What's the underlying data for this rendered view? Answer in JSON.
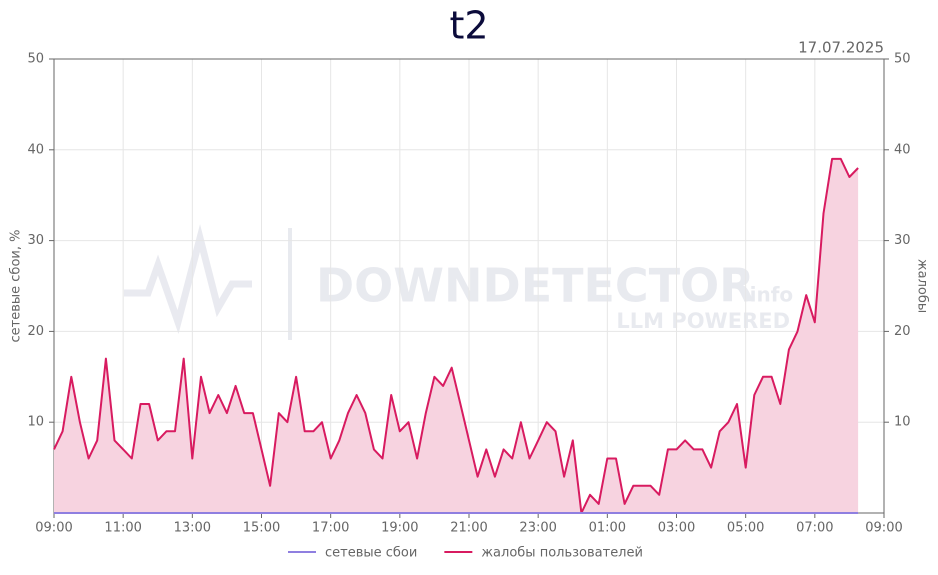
{
  "chart_data": {
    "type": "line",
    "title": "t2",
    "date": "17.07.2025",
    "y_label": "сетевые сбои, %",
    "y2_label": "жалобы",
    "watermark": {
      "brand": "DOWNDETECTOR",
      "suffix": ".info",
      "tagline": "LLM POWERED"
    },
    "x": [
      0,
      0.25,
      0.5,
      0.75,
      1,
      1.25,
      1.5,
      1.75,
      2,
      2.25,
      2.5,
      2.75,
      3,
      3.25,
      3.5,
      3.75,
      4,
      4.25,
      4.5,
      4.75,
      5,
      5.25,
      5.5,
      5.75,
      6,
      6.25,
      6.5,
      6.75,
      7,
      7.25,
      7.5,
      7.75,
      8,
      8.25,
      8.5,
      8.75,
      9,
      9.25,
      9.5,
      9.75,
      10,
      10.25,
      10.5,
      10.75,
      11,
      11.25,
      11.5,
      11.75,
      12,
      12.25,
      12.5,
      12.75,
      13,
      13.25,
      13.5,
      13.75,
      14,
      14.25,
      14.5,
      14.75,
      15,
      15.25,
      15.5,
      15.75,
      16,
      16.25,
      16.5,
      16.75,
      17,
      17.25,
      17.5,
      17.75,
      18,
      18.25,
      18.5,
      18.75,
      19,
      19.25,
      19.5,
      19.75,
      20,
      20.25,
      20.5,
      20.75,
      21,
      21.25,
      21.5,
      21.75,
      22,
      22.25,
      22.5,
      22.75,
      23,
      23.25
    ],
    "series": [
      {
        "name": "сетевые сбои",
        "color": "#8f7fe0",
        "axis": "y",
        "values": [
          0,
          0,
          0,
          0,
          0,
          0,
          0,
          0,
          0,
          0,
          0,
          0,
          0,
          0,
          0,
          0,
          0,
          0,
          0,
          0,
          0,
          0,
          0,
          0,
          0,
          0,
          0,
          0,
          0,
          0,
          0,
          0,
          0,
          0,
          0,
          0,
          0,
          0,
          0,
          0,
          0,
          0,
          0,
          0,
          0,
          0,
          0,
          0,
          0,
          0,
          0,
          0,
          0,
          0,
          0,
          0,
          0,
          0,
          0,
          0,
          0,
          0,
          0,
          0,
          0,
          0,
          0,
          0,
          0,
          0,
          0,
          0,
          0,
          0,
          0,
          0,
          0,
          0,
          0,
          0,
          0,
          0,
          0,
          0,
          0,
          0,
          0,
          0,
          0,
          0,
          0,
          0,
          0,
          0
        ]
      },
      {
        "name": "жалобы пользователей",
        "color": "#d81b60",
        "fill": "#f7d3e0",
        "axis": "y2",
        "values": [
          7,
          9,
          15,
          10,
          6,
          8,
          17,
          8,
          7,
          6,
          12,
          12,
          8,
          9,
          9,
          17,
          6,
          15,
          11,
          13,
          11,
          14,
          11,
          11,
          7,
          3,
          11,
          10,
          15,
          9,
          9,
          10,
          6,
          8,
          11,
          13,
          11,
          7,
          6,
          13,
          9,
          10,
          6,
          11,
          15,
          14,
          16,
          12,
          8,
          4,
          7,
          4,
          7,
          6,
          10,
          6,
          8,
          10,
          9,
          4,
          8,
          0,
          2,
          1,
          6,
          6,
          1,
          3,
          3,
          3,
          2,
          7,
          7,
          8,
          7,
          7,
          5,
          9,
          10,
          12,
          5,
          13,
          15,
          15,
          12,
          18,
          20,
          24,
          21,
          33,
          39,
          39,
          37,
          38
        ]
      }
    ],
    "xlim": [
      0,
      24
    ],
    "xticks": [
      {
        "value": 0,
        "label": "09:00"
      },
      {
        "value": 2,
        "label": "11:00"
      },
      {
        "value": 4,
        "label": "13:00"
      },
      {
        "value": 6,
        "label": "15:00"
      },
      {
        "value": 8,
        "label": "17:00"
      },
      {
        "value": 10,
        "label": "19:00"
      },
      {
        "value": 12,
        "label": "21:00"
      },
      {
        "value": 14,
        "label": "23:00"
      },
      {
        "value": 16,
        "label": "01:00"
      },
      {
        "value": 18,
        "label": "03:00"
      },
      {
        "value": 20,
        "label": "05:00"
      },
      {
        "value": 22,
        "label": "07:00"
      },
      {
        "value": 24,
        "label": "09:00"
      }
    ],
    "ylim": [
      0,
      50
    ],
    "yticks": [
      10,
      20,
      30,
      40,
      50
    ],
    "y2lim": [
      0,
      50
    ],
    "y2ticks": [
      10,
      20,
      30,
      40,
      50
    ],
    "grid": true,
    "legend": "bottom"
  }
}
